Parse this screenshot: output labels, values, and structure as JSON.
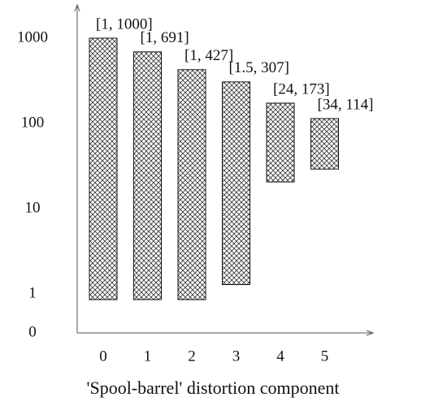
{
  "chart_data": {
    "type": "range-bar",
    "xlabel": "'Spool-barrel' distortion component",
    "categories": [
      "0",
      "1",
      "2",
      "3",
      "4",
      "5"
    ],
    "lows": [
      1,
      1,
      1,
      1.5,
      24,
      34
    ],
    "highs": [
      1000,
      691,
      427,
      307,
      173,
      114
    ],
    "value_labels": [
      "[1, 1000]",
      "[1, 691]",
      "[1, 427]",
      "[1.5, 307]",
      "[24, 173]",
      "[34, 114]"
    ],
    "ylim": [
      0,
      1000
    ],
    "yticks": [
      0,
      1,
      10,
      100,
      1000
    ],
    "log": true
  }
}
